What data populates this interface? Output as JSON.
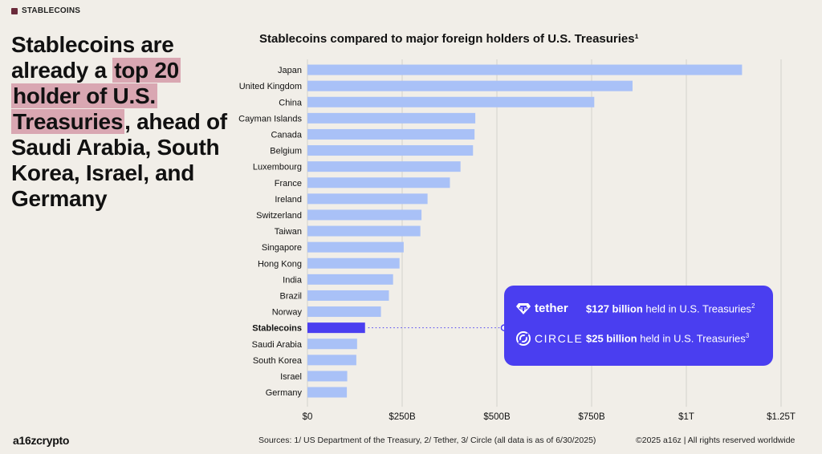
{
  "tag": "STABLECOINS",
  "headline": {
    "pre": "Stablecoins are already a ",
    "highlight": "top 20 holder of U.S. Treasuries",
    "post": ", ahead of Saudi Arabia, South Korea, Israel, and Germany"
  },
  "colors": {
    "bar": "#a9c1f7",
    "highlight_bar": "#4a3ef0",
    "grid": "#d4d1cb",
    "highlight_text": "#d9a7b2",
    "background": "#f1eee8",
    "callout": "#4a3ef0"
  },
  "chart_data": {
    "type": "bar",
    "orientation": "horizontal",
    "title": "Stablecoins compared to major foreign holders of U.S. Treasuries¹",
    "xlabel": "",
    "ylabel": "",
    "x_unit": "USD billions",
    "xlim": [
      0,
      1250
    ],
    "x_ticks": [
      0,
      250,
      500,
      750,
      1000,
      1250
    ],
    "x_tick_labels": [
      "$0",
      "$250B",
      "$500B",
      "$750B",
      "$1T",
      "$1.25T"
    ],
    "grid": "vertical",
    "highlighted_category": "Stablecoins",
    "categories": [
      "Japan",
      "United Kingdom",
      "China",
      "Cayman Islands",
      "Canada",
      "Belgium",
      "Luxembourg",
      "France",
      "Ireland",
      "Switzerland",
      "Taiwan",
      "Singapore",
      "Hong Kong",
      "India",
      "Brazil",
      "Norway",
      "Stablecoins",
      "Saudi Arabia",
      "South Korea",
      "Israel",
      "Germany"
    ],
    "values": [
      1147,
      858,
      757,
      443,
      441,
      437,
      404,
      376,
      317,
      301,
      298,
      254,
      243,
      226,
      215,
      194,
      152,
      131,
      129,
      105,
      104
    ]
  },
  "callout": {
    "tether": {
      "brand": "tether",
      "icon": "tether-logo-icon",
      "amount": "$127 billion",
      "text": " held in U.S. Treasuries",
      "note": "2"
    },
    "circle": {
      "brand": "CIRCLE",
      "icon": "circle-logo-icon",
      "amount": "$25 billion",
      "text": " held in U.S. Treasuries",
      "note": "3"
    }
  },
  "footer": {
    "logo": "a16zcrypto",
    "sources": "Sources: 1/ US Department of the Treasury, 2/ Tether, 3/ Circle (all data is as of 6/30/2025)",
    "rights": "©2025 a16z | All rights reserved worldwide"
  }
}
